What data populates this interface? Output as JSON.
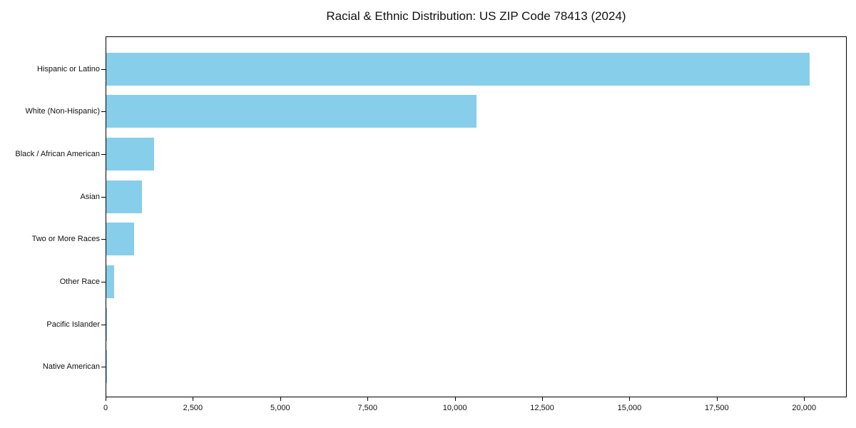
{
  "chart_data": {
    "type": "bar",
    "orientation": "horizontal",
    "title": "Racial & Ethnic Distribution: US ZIP Code 78413 (2024)",
    "categories": [
      "Hispanic or Latino",
      "White (Non-Hispanic)",
      "Black / African American",
      "Asian",
      "Two or More Races",
      "Other Race",
      "Pacific Islander",
      "Native American"
    ],
    "values": [
      20180,
      10630,
      1370,
      1020,
      800,
      230,
      20,
      10
    ],
    "xlabel": "",
    "ylabel": "",
    "xlim": [
      0,
      21220
    ],
    "xticks": [
      0,
      2500,
      5000,
      7500,
      10000,
      12500,
      15000,
      17500,
      20000
    ],
    "xtick_labels": [
      "0",
      "2,500",
      "5,000",
      "7,500",
      "10,000",
      "12,500",
      "15,000",
      "17,500",
      "20,000"
    ],
    "grid": false,
    "legend": "none"
  },
  "colors": {
    "bar": "#87CEEB",
    "text": "#111111",
    "spine": "#000000",
    "background": "#ffffff"
  }
}
